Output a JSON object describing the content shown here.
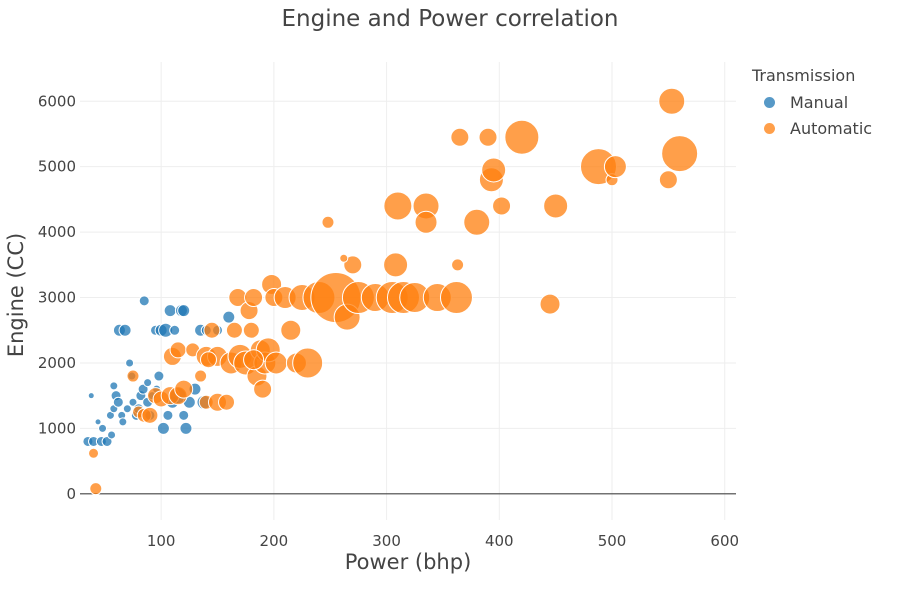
{
  "chart_data": {
    "type": "scatter",
    "title": "Engine and Power correlation",
    "xlabel": "Power (bhp)",
    "ylabel": "Engine (CC)",
    "xlim": [
      28,
      610
    ],
    "ylim": [
      -400,
      6600
    ],
    "x_ticks": [
      100,
      200,
      300,
      400,
      500,
      600
    ],
    "y_ticks": [
      0,
      1000,
      2000,
      3000,
      4000,
      5000,
      6000
    ],
    "grid": true,
    "legend": {
      "title": "Transmission",
      "placement": "top-right"
    },
    "series": [
      {
        "name": "Manual",
        "color": "#1f77b4",
        "points": [
          [
            35,
            800,
            5
          ],
          [
            40,
            800,
            5
          ],
          [
            47,
            800,
            5
          ],
          [
            48,
            1000,
            4
          ],
          [
            52,
            800,
            5
          ],
          [
            55,
            1200,
            4
          ],
          [
            58,
            1300,
            4
          ],
          [
            60,
            1500,
            5
          ],
          [
            62,
            1400,
            5
          ],
          [
            65,
            1200,
            4
          ],
          [
            63,
            2500,
            6
          ],
          [
            68,
            2500,
            6
          ],
          [
            72,
            2000,
            4
          ],
          [
            74,
            1800,
            4
          ],
          [
            75,
            1400,
            4
          ],
          [
            78,
            1200,
            5
          ],
          [
            80,
            1300,
            5
          ],
          [
            82,
            1500,
            5
          ],
          [
            84,
            1600,
            5
          ],
          [
            85,
            2950,
            5
          ],
          [
            88,
            1400,
            5
          ],
          [
            90,
            1200,
            5
          ],
          [
            92,
            1500,
            4
          ],
          [
            95,
            2500,
            5
          ],
          [
            98,
            1800,
            5
          ],
          [
            100,
            2500,
            6
          ],
          [
            102,
            1000,
            6
          ],
          [
            104,
            2500,
            7
          ],
          [
            106,
            1200,
            5
          ],
          [
            108,
            2800,
            6
          ],
          [
            110,
            1400,
            6
          ],
          [
            112,
            2500,
            5
          ],
          [
            115,
            1500,
            8
          ],
          [
            118,
            2800,
            6
          ],
          [
            120,
            2800,
            6
          ],
          [
            122,
            1000,
            6
          ],
          [
            125,
            1400,
            6
          ],
          [
            130,
            1600,
            6
          ],
          [
            135,
            2500,
            6
          ],
          [
            138,
            1400,
            7
          ],
          [
            140,
            2500,
            5
          ],
          [
            150,
            2500,
            5
          ],
          [
            160,
            2700,
            6
          ],
          [
            70,
            1300,
            4
          ],
          [
            66,
            1100,
            4
          ],
          [
            56,
            900,
            4
          ],
          [
            44,
            1100,
            3
          ],
          [
            38,
            1500,
            3
          ],
          [
            58,
            1650,
            4
          ],
          [
            88,
            1700,
            4
          ],
          [
            96,
            1600,
            4
          ],
          [
            120,
            1200,
            5
          ]
        ]
      },
      {
        "name": "Automatic",
        "color": "#ff7f0e",
        "points": [
          [
            40,
            620,
            5
          ],
          [
            42,
            80,
            6
          ],
          [
            75,
            1800,
            6
          ],
          [
            80,
            1250,
            6
          ],
          [
            85,
            1200,
            7
          ],
          [
            90,
            1200,
            8
          ],
          [
            95,
            1500,
            8
          ],
          [
            100,
            1450,
            8
          ],
          [
            108,
            1500,
            9
          ],
          [
            110,
            2100,
            9
          ],
          [
            115,
            1500,
            9
          ],
          [
            115,
            2200,
            8
          ],
          [
            120,
            1600,
            9
          ],
          [
            128,
            2200,
            7
          ],
          [
            135,
            1800,
            6
          ],
          [
            140,
            2100,
            10
          ],
          [
            140,
            1400,
            7
          ],
          [
            145,
            2500,
            8
          ],
          [
            150,
            2100,
            10
          ],
          [
            150,
            1400,
            9
          ],
          [
            158,
            1400,
            8
          ],
          [
            162,
            2000,
            11
          ],
          [
            165,
            2500,
            8
          ],
          [
            168,
            3000,
            9
          ],
          [
            170,
            2100,
            12
          ],
          [
            175,
            2000,
            12
          ],
          [
            178,
            2800,
            9
          ],
          [
            180,
            2500,
            8
          ],
          [
            182,
            3000,
            9
          ],
          [
            185,
            1800,
            10
          ],
          [
            188,
            2200,
            10
          ],
          [
            190,
            1600,
            9
          ],
          [
            192,
            2000,
            11
          ],
          [
            195,
            2200,
            12
          ],
          [
            198,
            3200,
            10
          ],
          [
            200,
            3000,
            9
          ],
          [
            202,
            2000,
            11
          ],
          [
            210,
            3000,
            11
          ],
          [
            215,
            2500,
            10
          ],
          [
            220,
            2000,
            10
          ],
          [
            225,
            3000,
            13
          ],
          [
            230,
            2000,
            15
          ],
          [
            240,
            3000,
            16
          ],
          [
            248,
            4150,
            6
          ],
          [
            255,
            3000,
            25
          ],
          [
            265,
            2700,
            13
          ],
          [
            270,
            3500,
            9
          ],
          [
            275,
            3000,
            16
          ],
          [
            290,
            3000,
            14
          ],
          [
            305,
            3000,
            16
          ],
          [
            308,
            3500,
            12
          ],
          [
            310,
            4400,
            14
          ],
          [
            315,
            3000,
            16
          ],
          [
            325,
            3000,
            15
          ],
          [
            335,
            4400,
            13
          ],
          [
            335,
            4150,
            11
          ],
          [
            345,
            3000,
            14
          ],
          [
            362,
            3000,
            16
          ],
          [
            363,
            3500,
            6
          ],
          [
            365,
            5450,
            9
          ],
          [
            380,
            4150,
            13
          ],
          [
            390,
            5450,
            9
          ],
          [
            393,
            4800,
            12
          ],
          [
            395,
            4950,
            12
          ],
          [
            402,
            4400,
            9
          ],
          [
            420,
            5450,
            17
          ],
          [
            445,
            2900,
            10
          ],
          [
            450,
            4400,
            12
          ],
          [
            488,
            5000,
            18
          ],
          [
            500,
            4800,
            6
          ],
          [
            503,
            5000,
            11
          ],
          [
            550,
            4800,
            9
          ],
          [
            553,
            6000,
            13
          ],
          [
            560,
            5200,
            18
          ],
          [
            262,
            3600,
            4
          ],
          [
            142,
            2050,
            8
          ],
          [
            182,
            2050,
            10
          ]
        ]
      }
    ]
  }
}
